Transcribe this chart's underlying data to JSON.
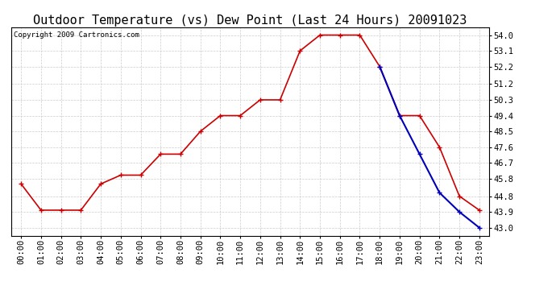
{
  "title": "Outdoor Temperature (vs) Dew Point (Last 24 Hours) 20091023",
  "copyright_text": "Copyright 2009 Cartronics.com",
  "x_labels": [
    "00:00",
    "01:00",
    "02:00",
    "03:00",
    "04:00",
    "05:00",
    "06:00",
    "07:00",
    "08:00",
    "09:00",
    "10:00",
    "11:00",
    "12:00",
    "13:00",
    "14:00",
    "15:00",
    "16:00",
    "17:00",
    "18:00",
    "19:00",
    "20:00",
    "21:00",
    "22:00",
    "23:00"
  ],
  "temp_values": [
    45.5,
    44.0,
    44.0,
    44.0,
    45.5,
    46.0,
    46.0,
    47.2,
    47.2,
    48.5,
    49.4,
    49.4,
    50.3,
    50.3,
    53.1,
    54.0,
    54.0,
    54.0,
    52.2,
    49.4,
    49.4,
    47.6,
    44.8,
    44.0
  ],
  "dew_values": [
    null,
    null,
    null,
    null,
    null,
    null,
    null,
    null,
    null,
    null,
    null,
    null,
    null,
    null,
    null,
    null,
    null,
    null,
    52.2,
    49.4,
    47.2,
    45.0,
    43.9,
    43.0
  ],
  "y_ticks": [
    43.0,
    43.9,
    44.8,
    45.8,
    46.7,
    47.6,
    48.5,
    49.4,
    50.3,
    51.2,
    52.2,
    53.1,
    54.0
  ],
  "ylim": [
    42.55,
    54.45
  ],
  "temp_color": "#cc0000",
  "dew_color": "#0000bb",
  "marker": "+",
  "figure_bg_color": "#ffffff",
  "plot_bg_color": "#ffffff",
  "grid_color": "#cccccc",
  "title_fontsize": 11,
  "tick_fontsize": 7.5,
  "copyright_fontsize": 6.5
}
